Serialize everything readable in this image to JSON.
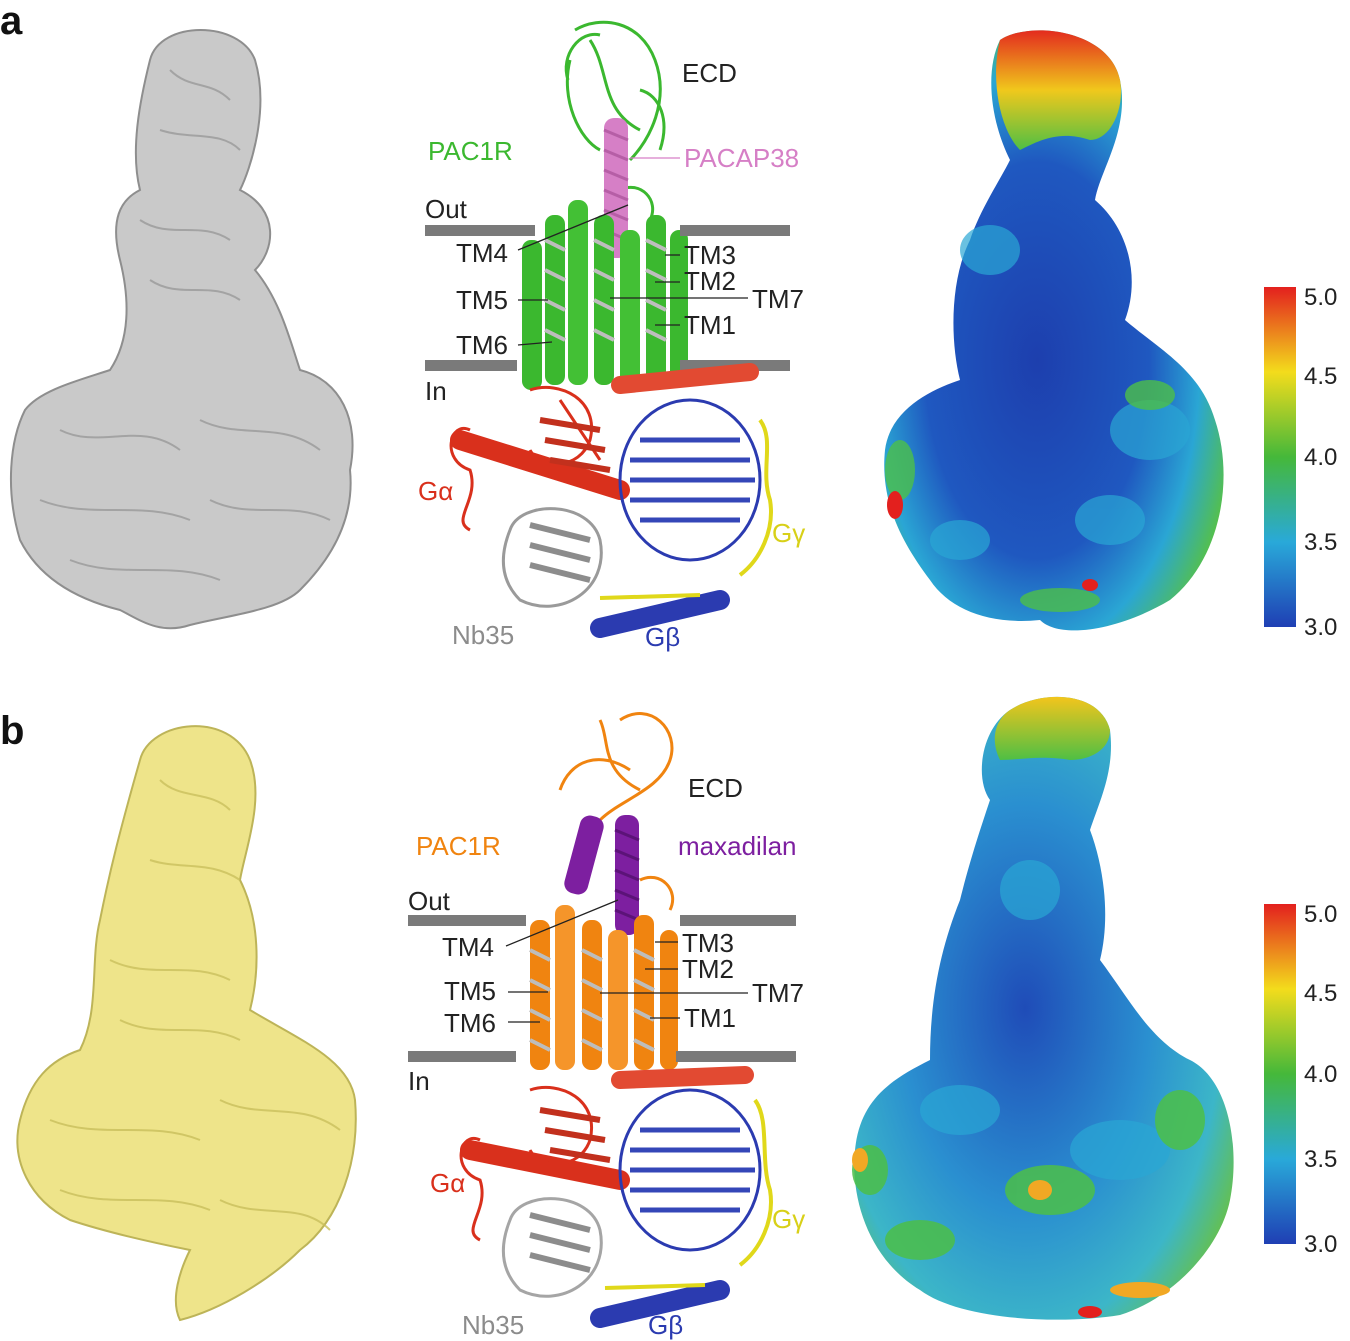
{
  "panels": [
    {
      "letter": "a",
      "receptor_name": "PAC1R",
      "ligand_name": "PACAP38",
      "ecd_label": "ECD",
      "out_label": "Out",
      "in_label": "In",
      "tm_labels": [
        "TM4",
        "TM5",
        "TM6",
        "TM3",
        "TM2",
        "TM7",
        "TM1"
      ],
      "g_alpha": "Gα",
      "g_beta": "Gβ",
      "g_gamma": "Gγ",
      "nanobody": "Nb35",
      "receptor_color": "#3bb82f",
      "ligand_color": "#d67fc6",
      "density_color": "#c8c8c8",
      "colorbar_ticks": [
        "5.0",
        "4.5",
        "4.0",
        "3.5",
        "3.0"
      ]
    },
    {
      "letter": "b",
      "receptor_name": "PAC1R",
      "ligand_name": "maxadilan",
      "ecd_label": "ECD",
      "out_label": "Out",
      "in_label": "In",
      "tm_labels": [
        "TM4",
        "TM5",
        "TM6",
        "TM3",
        "TM2",
        "TM7",
        "TM1"
      ],
      "g_alpha": "Gα",
      "g_beta": "Gβ",
      "g_gamma": "Gγ",
      "nanobody": "Nb35",
      "receptor_color": "#f08410",
      "ligand_color": "#7d1fa0",
      "density_color": "#eee48a",
      "colorbar_ticks": [
        "5.0",
        "4.5",
        "4.0",
        "3.5",
        "3.0"
      ]
    }
  ],
  "colors": {
    "g_alpha": "#d9301c",
    "g_beta": "#2b3bb0",
    "g_gamma": "#e0d81a",
    "nanobody": "#8c8c8c",
    "membrane": "#7a7a7a",
    "text": "#222222"
  }
}
